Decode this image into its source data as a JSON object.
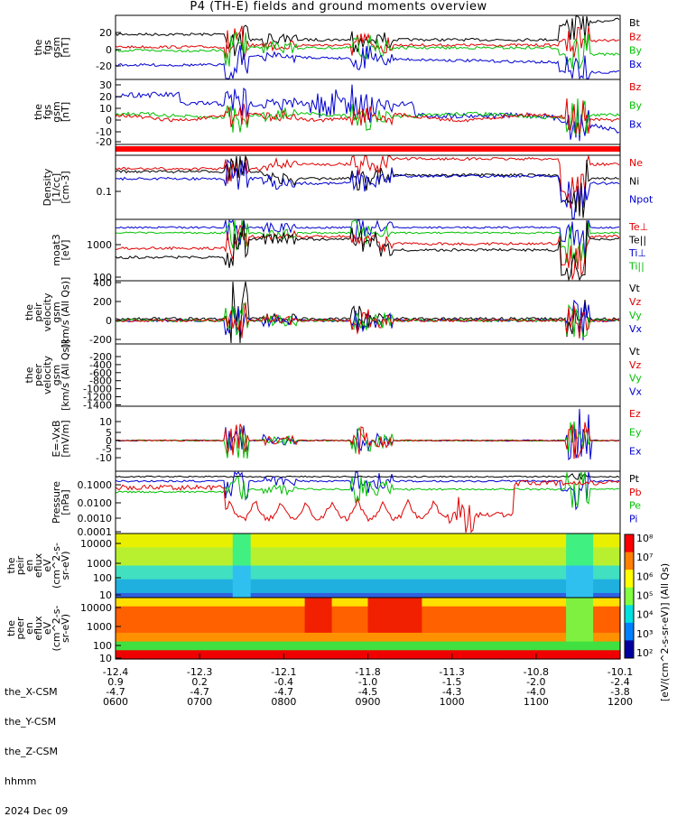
{
  "title": "P4 (TH-E) fields and ground moments overview",
  "chart_data": {
    "type": "line",
    "time_ticks": [
      "0600",
      "0700",
      "0800",
      "0900",
      "1000",
      "1100",
      "1200"
    ],
    "footer": {
      "rows": [
        {
          "label": "the_X-CSM",
          "values": [
            "-12.4",
            "-12.3",
            "-12.1",
            "-11.8",
            "-11.3",
            "-10.8",
            "-10.1"
          ]
        },
        {
          "label": "the_Y-CSM",
          "values": [
            "0.9",
            "0.2",
            "-0.4",
            "-1.0",
            "-1.5",
            "-2.0",
            "-2.4"
          ]
        },
        {
          "label": "the_Z-CSM",
          "values": [
            "-4.7",
            "-4.7",
            "-4.7",
            "-4.5",
            "-4.3",
            "-4.0",
            "-3.8"
          ]
        },
        {
          "label": "hhmm",
          "values": [
            "0600",
            "0700",
            "0800",
            "0900",
            "1000",
            "1100",
            "1200"
          ]
        }
      ],
      "date": "2024 Dec 09"
    },
    "panels": [
      {
        "ylabel": [
          "the",
          "fgs",
          "gsm",
          "[nT]"
        ],
        "ticks": [
          "20",
          "0",
          "-20"
        ],
        "legend": [
          {
            "t": "Bt",
            "c": "#000000"
          },
          {
            "t": "Bz",
            "c": "#e00000"
          },
          {
            "t": "By",
            "c": "#00c000"
          },
          {
            "t": "Bx",
            "c": "#0000d0"
          }
        ]
      },
      {
        "ylabel": [
          "the",
          "fgs",
          "gsm",
          "[nT]"
        ],
        "ticks": [
          "30",
          "20",
          "10",
          "0",
          "-10",
          "-20"
        ],
        "legend": [
          {
            "t": "Bz",
            "c": "#e00000"
          },
          {
            "t": "By",
            "c": "#00c000"
          },
          {
            "t": "Bx",
            "c": "#0000d0"
          }
        ]
      },
      {
        "ylabel": [
          "Density",
          "[1/cc]",
          "[cm-3]"
        ],
        "ticks": [
          "0.1"
        ],
        "legend": [
          {
            "t": "Ne",
            "c": "#e00000"
          },
          {
            "t": "Ni",
            "c": "#000000"
          },
          {
            "t": "Npot",
            "c": "#0000d0"
          }
        ]
      },
      {
        "ylabel": [
          "moat3",
          "[eV]"
        ],
        "ticks": [
          "1000",
          "100"
        ],
        "legend": [
          {
            "t": "Te⊥",
            "c": "#e00000"
          },
          {
            "t": "Te||",
            "c": "#000000"
          },
          {
            "t": "Ti⊥",
            "c": "#0000d0"
          },
          {
            "t": "Ti||",
            "c": "#00c000"
          }
        ]
      },
      {
        "ylabel": [
          "the",
          "peir",
          "velocity",
          "gsm",
          "[km/s (All Qs)]"
        ],
        "ticks": [
          "400",
          "200",
          "0",
          "-200"
        ],
        "legend": [
          {
            "t": "Vt",
            "c": "#000000"
          },
          {
            "t": "Vz",
            "c": "#e00000"
          },
          {
            "t": "Vy",
            "c": "#00c000"
          },
          {
            "t": "Vx",
            "c": "#0000d0"
          }
        ]
      },
      {
        "ylabel": [
          "the",
          "peer",
          "velocity",
          "gsm",
          "[km/s (All Qs)]"
        ],
        "ticks": [
          "-200",
          "-400",
          "-600",
          "-800",
          "-1000",
          "-1200",
          "-1400"
        ],
        "legend": [
          {
            "t": "Vt",
            "c": "#000000"
          },
          {
            "t": "Vz",
            "c": "#e00000"
          },
          {
            "t": "Vy",
            "c": "#00c000"
          },
          {
            "t": "Vx",
            "c": "#0000d0"
          }
        ]
      },
      {
        "ylabel": [
          "E=-VxB",
          "[mV/m]"
        ],
        "ticks": [
          "10",
          "5",
          "0",
          "-5",
          "-10"
        ],
        "legend": [
          {
            "t": "Ez",
            "c": "#e00000"
          },
          {
            "t": "Ey",
            "c": "#00c000"
          },
          {
            "t": "Ex",
            "c": "#0000d0"
          }
        ]
      },
      {
        "ylabel": [
          "Pressure",
          "[nPa]"
        ],
        "ticks": [
          "0.1000",
          "0.0100",
          "0.0010",
          "0.0001"
        ],
        "legend": [
          {
            "t": "Pt",
            "c": "#000000"
          },
          {
            "t": "Pb",
            "c": "#e00000"
          },
          {
            "t": "Pe",
            "c": "#00c000"
          },
          {
            "t": "Pi",
            "c": "#0000d0"
          }
        ]
      },
      {
        "ylabel": [
          "the",
          "peir",
          "en",
          "eflux",
          "eV",
          "(cm^2-s-",
          "sr-eV)"
        ],
        "ticks": [
          "10000",
          "1000",
          "100",
          "10"
        ],
        "legend": []
      },
      {
        "ylabel": [
          "the",
          "peer",
          "en",
          "eflux",
          "eV",
          "(cm^2-s-",
          "sr-eV)"
        ],
        "ticks": [
          "10000",
          "1000",
          "100",
          "10"
        ],
        "legend": []
      }
    ],
    "colorbar": {
      "label": "[eV/(cm^2-s-sr-eV)] (All Qs)",
      "ticks": [
        "10⁸",
        "10⁷",
        "10⁶",
        "10⁵",
        "10⁴",
        "10³",
        "10²"
      ]
    }
  }
}
